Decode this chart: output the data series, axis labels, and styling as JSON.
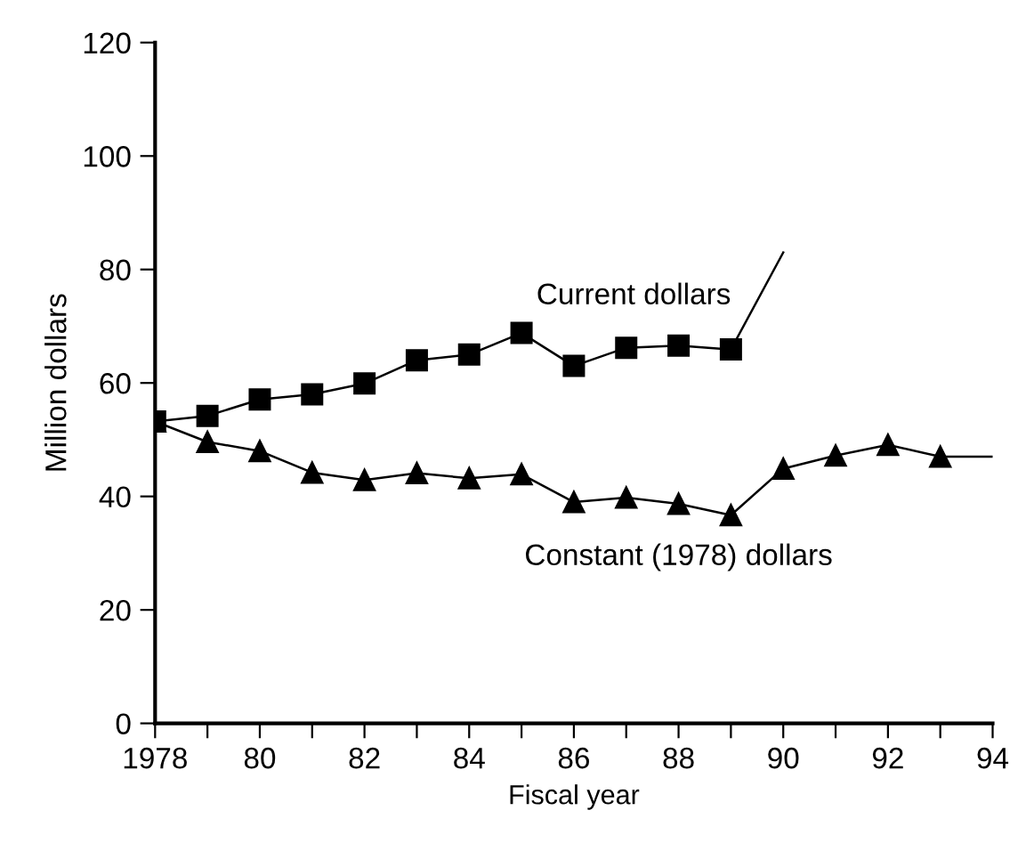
{
  "chart_data": {
    "type": "line",
    "xlabel": "Fiscal year",
    "ylabel": "Million dollars",
    "xlim": [
      1978,
      1994
    ],
    "ylim": [
      0,
      120
    ],
    "xticks": [
      {
        "value": 1978,
        "label": "1978"
      },
      {
        "value": 1979,
        "label": null
      },
      {
        "value": 1980,
        "label": "80"
      },
      {
        "value": 1981,
        "label": null
      },
      {
        "value": 1982,
        "label": "82"
      },
      {
        "value": 1983,
        "label": null
      },
      {
        "value": 1984,
        "label": "84"
      },
      {
        "value": 1985,
        "label": null
      },
      {
        "value": 1986,
        "label": "86"
      },
      {
        "value": 1987,
        "label": null
      },
      {
        "value": 1988,
        "label": "88"
      },
      {
        "value": 1989,
        "label": null
      },
      {
        "value": 1990,
        "label": "90"
      },
      {
        "value": 1991,
        "label": null
      },
      {
        "value": 1992,
        "label": "92"
      },
      {
        "value": 1993,
        "label": null
      },
      {
        "value": 1994,
        "label": "94"
      }
    ],
    "yticks": [
      0,
      20,
      40,
      60,
      80,
      100,
      120
    ],
    "grid": false,
    "legend": false,
    "series": [
      {
        "name": "Current dollars",
        "color": "#000000",
        "marker": "square",
        "x": [
          1978,
          1979,
          1980,
          1981,
          1982,
          1983,
          1984,
          1985,
          1986,
          1987,
          1988,
          1989
        ],
        "values": [
          53.2,
          54.2,
          57.1,
          58.0,
          59.9,
          64.0,
          65.0,
          68.8,
          63.0,
          66.2,
          66.6,
          65.9
        ]
      },
      {
        "color": "#000000",
        "marker": "none",
        "x": [
          1989,
          1990
        ],
        "values": [
          65.9,
          83
        ]
      },
      {
        "name": "Constant (1978) dollars",
        "color": "#000000",
        "marker": "triangle",
        "x": [
          1978,
          1979,
          1980,
          1981,
          1982,
          1983,
          1984,
          1985,
          1986,
          1987,
          1988,
          1989,
          1990,
          1991,
          1992,
          1993
        ],
        "values": [
          53.2,
          49.6,
          48.0,
          44.2,
          42.9,
          44.1,
          43.2,
          43.9,
          39.0,
          39.8,
          38.7,
          36.7,
          44.9,
          47.2,
          49.1,
          47.0
        ]
      },
      {
        "color": "#000000",
        "marker": "none",
        "x": [
          1993,
          1994
        ],
        "values": [
          47.0,
          47.0
        ]
      }
    ]
  }
}
